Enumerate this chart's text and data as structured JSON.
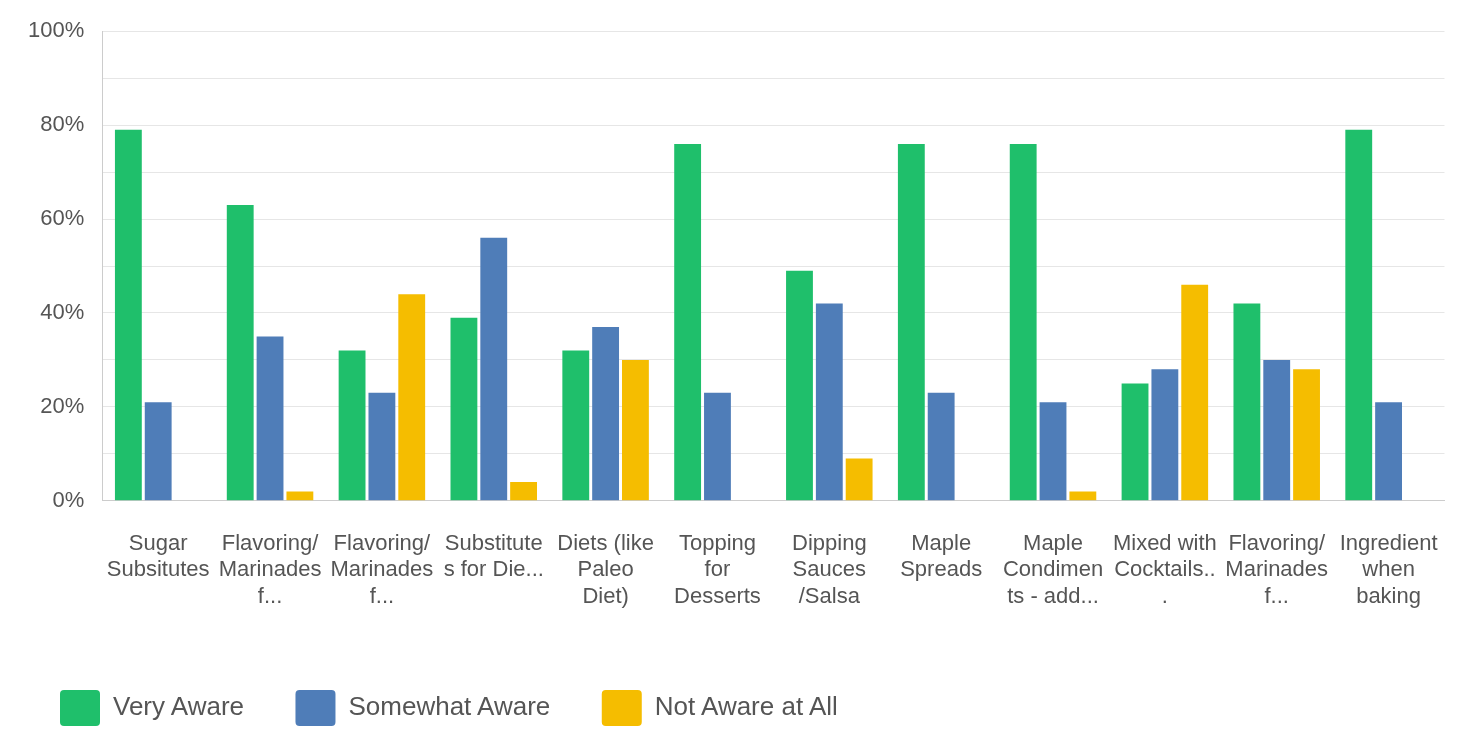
{
  "chart_data": {
    "type": "bar",
    "categories": [
      "Sugar Subsitutes",
      "Flavoring/Marinades f...",
      "Flavoring/Marinades f...",
      "Substitutes for Die...",
      "Diets (like Paleo Diet)",
      "Topping for Desserts",
      "Dipping Sauces /Salsa",
      "Maple Spreads",
      "Maple Condiments - add...",
      "Mixed with Cocktails...",
      "Flavoring/Marinades f...",
      "Ingredient when baking"
    ],
    "series": [
      {
        "name": "Very Aware",
        "color": "#1fbf6b",
        "values": [
          79,
          63,
          32,
          39,
          32,
          76,
          49,
          76,
          76,
          25,
          42,
          79
        ]
      },
      {
        "name": "Somewhat Aware",
        "color": "#4f7db8",
        "values": [
          21,
          35,
          23,
          56,
          37,
          23,
          42,
          23,
          21,
          28,
          30,
          21
        ]
      },
      {
        "name": "Not Aware at All",
        "color": "#f5bd00",
        "values": [
          0,
          2,
          44,
          4,
          30,
          0,
          9,
          0,
          2,
          46,
          28,
          0
        ]
      }
    ],
    "ylim": [
      0,
      100
    ],
    "yticks": [
      {
        "value": 0,
        "label": "0%"
      },
      {
        "value": 10,
        "label": null
      },
      {
        "value": 20,
        "label": "20%"
      },
      {
        "value": 30,
        "label": null
      },
      {
        "value": 40,
        "label": "40%"
      },
      {
        "value": 50,
        "label": null
      },
      {
        "value": 60,
        "label": "60%"
      },
      {
        "value": 70,
        "label": null
      },
      {
        "value": 80,
        "label": "80%"
      },
      {
        "value": 90,
        "label": null
      },
      {
        "value": 100,
        "label": "100%"
      }
    ],
    "grid": "y",
    "legend": "bottom left"
  }
}
